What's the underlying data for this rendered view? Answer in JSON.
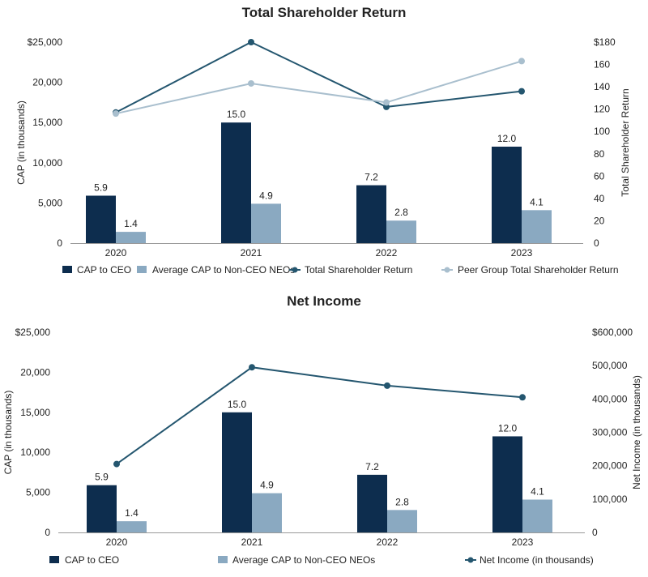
{
  "colors": {
    "ceo": "#0d2d4e",
    "neo": "#8aa9c1",
    "tsr": "#24566f",
    "peer": "#a9bfce",
    "axis": "#999999"
  },
  "chart_data": [
    {
      "type": "bar",
      "title": "Total Shareholder Return",
      "categories": [
        "2020",
        "2021",
        "2022",
        "2023"
      ],
      "ylabel": "CAP (in thousands)",
      "ylim": [
        0,
        25000
      ],
      "yticks": [
        "0",
        "5,000",
        "10,000",
        "15,000",
        "20,000",
        "$25,000"
      ],
      "y2label": "Total Shareholder Return",
      "y2lim": [
        0,
        180
      ],
      "y2ticks": [
        "0",
        "20",
        "40",
        "60",
        "80",
        "100",
        "120",
        "140",
        "160",
        "$180"
      ],
      "series": [
        {
          "name": "CAP to CEO",
          "kind": "bar",
          "axis": "left",
          "color_key": "ceo",
          "values": [
            5900,
            15000,
            7200,
            12000
          ],
          "labels": [
            "5.9",
            "15.0",
            "7.2",
            "12.0"
          ]
        },
        {
          "name": "Average CAP to Non-CEO NEOs",
          "kind": "bar",
          "axis": "left",
          "color_key": "neo",
          "values": [
            1400,
            4900,
            2800,
            4100
          ],
          "labels": [
            "1.4",
            "4.9",
            "2.8",
            "4.1"
          ]
        },
        {
          "name": "Total Shareholder Return",
          "kind": "line",
          "axis": "right",
          "color_key": "tsr",
          "values": [
            117,
            180,
            122,
            136
          ]
        },
        {
          "name": "Peer Group Total Shareholder Return",
          "kind": "line",
          "axis": "right",
          "color_key": "peer",
          "values": [
            116,
            143,
            126,
            163
          ]
        }
      ]
    },
    {
      "type": "bar",
      "title": "Net Income",
      "categories": [
        "2020",
        "2021",
        "2022",
        "2023"
      ],
      "ylabel": "CAP (in thousands)",
      "ylim": [
        0,
        25000
      ],
      "yticks": [
        "0",
        "5,000",
        "10,000",
        "15,000",
        "20,000",
        "$25,000"
      ],
      "y2label": "Net Income (in thousands)",
      "y2lim": [
        0,
        600000
      ],
      "y2ticks": [
        "0",
        "100,000",
        "200,000",
        "300,000",
        "400,000",
        "500,000",
        "$600,000"
      ],
      "series": [
        {
          "name": "CAP to CEO",
          "kind": "bar",
          "axis": "left",
          "color_key": "ceo",
          "values": [
            5900,
            15000,
            7200,
            12000
          ],
          "labels": [
            "5.9",
            "15.0",
            "7.2",
            "12.0"
          ]
        },
        {
          "name": "Average CAP to Non-CEO NEOs",
          "kind": "bar",
          "axis": "left",
          "color_key": "neo",
          "values": [
            1400,
            4900,
            2800,
            4100
          ],
          "labels": [
            "1.4",
            "4.9",
            "2.8",
            "4.1"
          ]
        },
        {
          "name": "Net Income (in thousands)",
          "kind": "line",
          "axis": "right",
          "color_key": "tsr",
          "values": [
            205000,
            495000,
            440000,
            405000
          ]
        }
      ]
    }
  ]
}
